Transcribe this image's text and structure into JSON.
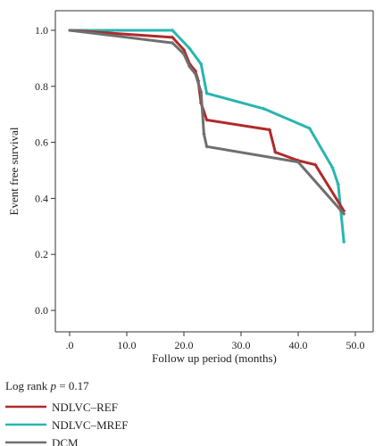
{
  "chart_data": {
    "type": "line",
    "title": "",
    "xlabel": "Follow up period (months)",
    "ylabel": "Event free survival",
    "xlim": [
      0,
      50
    ],
    "ylim": [
      0,
      1.05
    ],
    "x_ticks": [
      {
        "value": 0,
        "label": ".0"
      },
      {
        "value": 10,
        "label": "10.0"
      },
      {
        "value": 20,
        "label": "20.0"
      },
      {
        "value": 30,
        "label": "30.0"
      },
      {
        "value": 40,
        "label": "40.0"
      },
      {
        "value": 50,
        "label": "50.0"
      }
    ],
    "y_ticks": [
      {
        "value": 0.0,
        "label": "0.0"
      },
      {
        "value": 0.2,
        "label": "0.2"
      },
      {
        "value": 0.4,
        "label": "0.4"
      },
      {
        "value": 0.6,
        "label": "0.6"
      },
      {
        "value": 0.8,
        "label": "0.8"
      },
      {
        "value": 1.0,
        "label": "1.0"
      }
    ],
    "grid": false,
    "legend_placement": "bottom-left",
    "legend_title_prefix": "Log rank ",
    "legend_title_p": "p",
    "legend_title_suffix": " = 0.17",
    "series": [
      {
        "name": "NDLVC–REF",
        "color": "#b02a2a",
        "points": [
          [
            0,
            1.0
          ],
          [
            18,
            0.975
          ],
          [
            20,
            0.93
          ],
          [
            21,
            0.88
          ],
          [
            22,
            0.855
          ],
          [
            22.5,
            0.82
          ],
          [
            23,
            0.74
          ],
          [
            24,
            0.68
          ],
          [
            35,
            0.645
          ],
          [
            36,
            0.565
          ],
          [
            40,
            0.535
          ],
          [
            43,
            0.52
          ],
          [
            48,
            0.355
          ]
        ]
      },
      {
        "name": "NDLVC–MREF",
        "color": "#2ab5b0",
        "points": [
          [
            0,
            1.0
          ],
          [
            18,
            1.0
          ],
          [
            21,
            0.935
          ],
          [
            23,
            0.88
          ],
          [
            24,
            0.775
          ],
          [
            34,
            0.72
          ],
          [
            42,
            0.65
          ],
          [
            46,
            0.51
          ],
          [
            47,
            0.45
          ],
          [
            48,
            0.245
          ]
        ]
      },
      {
        "name": "DCM",
        "color": "#6f6f6f",
        "points": [
          [
            0,
            1.0
          ],
          [
            18,
            0.955
          ],
          [
            20,
            0.915
          ],
          [
            21,
            0.87
          ],
          [
            22,
            0.845
          ],
          [
            23,
            0.78
          ],
          [
            23.5,
            0.63
          ],
          [
            24,
            0.585
          ],
          [
            40,
            0.53
          ],
          [
            48,
            0.345
          ]
        ]
      }
    ]
  }
}
